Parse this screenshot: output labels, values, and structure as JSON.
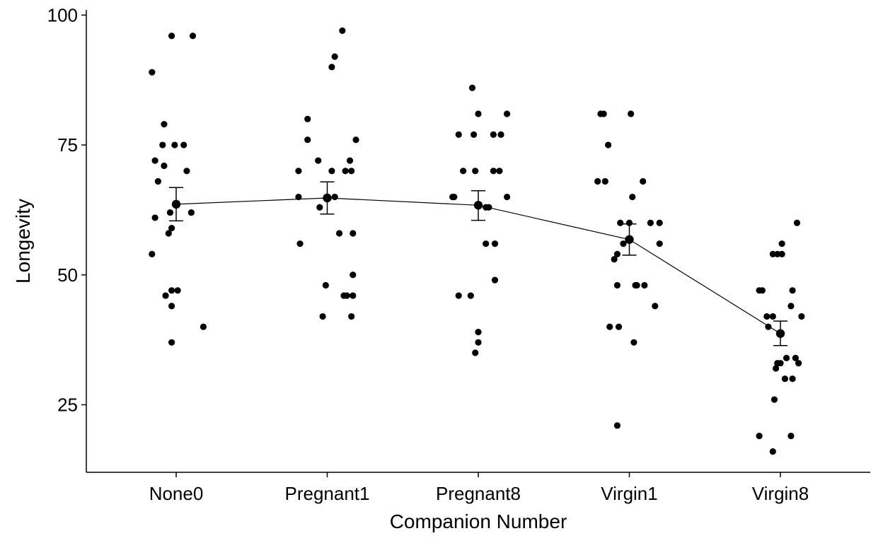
{
  "chart_data": {
    "type": "scatter",
    "xlabel": "Companion Number",
    "ylabel": "Longevity",
    "categories": [
      "None0",
      "Pregnant1",
      "Pregnant8",
      "Virgin1",
      "Virgin8"
    ],
    "ylim": [
      12,
      101
    ],
    "yticks": [
      25,
      50,
      75,
      100
    ],
    "grid": false,
    "points": [
      {
        "group": "None0",
        "jitter": -0.16,
        "value": 89
      },
      {
        "group": "None0",
        "jitter": -0.03,
        "value": 96
      },
      {
        "group": "None0",
        "jitter": 0.11,
        "value": 96
      },
      {
        "group": "None0",
        "jitter": -0.08,
        "value": 79
      },
      {
        "group": "None0",
        "jitter": -0.09,
        "value": 75
      },
      {
        "group": "None0",
        "jitter": -0.01,
        "value": 75
      },
      {
        "group": "None0",
        "jitter": 0.05,
        "value": 75
      },
      {
        "group": "None0",
        "jitter": -0.14,
        "value": 72
      },
      {
        "group": "None0",
        "jitter": -0.08,
        "value": 71
      },
      {
        "group": "None0",
        "jitter": 0.07,
        "value": 70
      },
      {
        "group": "None0",
        "jitter": -0.12,
        "value": 68
      },
      {
        "group": "None0",
        "jitter": -0.04,
        "value": 62
      },
      {
        "group": "None0",
        "jitter": 0.1,
        "value": 62
      },
      {
        "group": "None0",
        "jitter": -0.14,
        "value": 61
      },
      {
        "group": "None0",
        "jitter": -0.03,
        "value": 59
      },
      {
        "group": "None0",
        "jitter": -0.05,
        "value": 58
      },
      {
        "group": "None0",
        "jitter": -0.16,
        "value": 54
      },
      {
        "group": "None0",
        "jitter": -0.03,
        "value": 47
      },
      {
        "group": "None0",
        "jitter": 0.01,
        "value": 47
      },
      {
        "group": "None0",
        "jitter": -0.07,
        "value": 46
      },
      {
        "group": "None0",
        "jitter": -0.03,
        "value": 44
      },
      {
        "group": "None0",
        "jitter": 0.18,
        "value": 40
      },
      {
        "group": "None0",
        "jitter": -0.03,
        "value": 37
      },
      {
        "group": "Pregnant1",
        "jitter": 0.1,
        "value": 97
      },
      {
        "group": "Pregnant1",
        "jitter": 0.05,
        "value": 92
      },
      {
        "group": "Pregnant1",
        "jitter": 0.03,
        "value": 90
      },
      {
        "group": "Pregnant1",
        "jitter": -0.13,
        "value": 80
      },
      {
        "group": "Pregnant1",
        "jitter": 0.19,
        "value": 76
      },
      {
        "group": "Pregnant1",
        "jitter": -0.13,
        "value": 76
      },
      {
        "group": "Pregnant1",
        "jitter": -0.06,
        "value": 72
      },
      {
        "group": "Pregnant1",
        "jitter": 0.15,
        "value": 72
      },
      {
        "group": "Pregnant1",
        "jitter": -0.19,
        "value": 70
      },
      {
        "group": "Pregnant1",
        "jitter": 0.03,
        "value": 70
      },
      {
        "group": "Pregnant1",
        "jitter": 0.12,
        "value": 70
      },
      {
        "group": "Pregnant1",
        "jitter": 0.16,
        "value": 70
      },
      {
        "group": "Pregnant1",
        "jitter": -0.19,
        "value": 65
      },
      {
        "group": "Pregnant1",
        "jitter": 0.05,
        "value": 65
      },
      {
        "group": "Pregnant1",
        "jitter": -0.05,
        "value": 63
      },
      {
        "group": "Pregnant1",
        "jitter": 0.17,
        "value": 58
      },
      {
        "group": "Pregnant1",
        "jitter": 0.08,
        "value": 58
      },
      {
        "group": "Pregnant1",
        "jitter": -0.18,
        "value": 56
      },
      {
        "group": "Pregnant1",
        "jitter": 0.17,
        "value": 50
      },
      {
        "group": "Pregnant1",
        "jitter": -0.01,
        "value": 48
      },
      {
        "group": "Pregnant1",
        "jitter": 0.17,
        "value": 46
      },
      {
        "group": "Pregnant1",
        "jitter": 0.11,
        "value": 46
      },
      {
        "group": "Pregnant1",
        "jitter": 0.13,
        "value": 46
      },
      {
        "group": "Pregnant1",
        "jitter": -0.03,
        "value": 42
      },
      {
        "group": "Pregnant1",
        "jitter": 0.16,
        "value": 42
      },
      {
        "group": "Pregnant8",
        "jitter": -0.04,
        "value": 86
      },
      {
        "group": "Pregnant8",
        "jitter": 0.19,
        "value": 81
      },
      {
        "group": "Pregnant8",
        "jitter": 0.0,
        "value": 81
      },
      {
        "group": "Pregnant8",
        "jitter": -0.13,
        "value": 77
      },
      {
        "group": "Pregnant8",
        "jitter": -0.03,
        "value": 77
      },
      {
        "group": "Pregnant8",
        "jitter": 0.1,
        "value": 77
      },
      {
        "group": "Pregnant8",
        "jitter": 0.15,
        "value": 77
      },
      {
        "group": "Pregnant8",
        "jitter": -0.1,
        "value": 70
      },
      {
        "group": "Pregnant8",
        "jitter": -0.02,
        "value": 70
      },
      {
        "group": "Pregnant8",
        "jitter": 0.1,
        "value": 70
      },
      {
        "group": "Pregnant8",
        "jitter": 0.14,
        "value": 70
      },
      {
        "group": "Pregnant8",
        "jitter": -0.17,
        "value": 65
      },
      {
        "group": "Pregnant8",
        "jitter": -0.16,
        "value": 65
      },
      {
        "group": "Pregnant8",
        "jitter": 0.19,
        "value": 65
      },
      {
        "group": "Pregnant8",
        "jitter": 0.05,
        "value": 63
      },
      {
        "group": "Pregnant8",
        "jitter": 0.07,
        "value": 63
      },
      {
        "group": "Pregnant8",
        "jitter": 0.05,
        "value": 56
      },
      {
        "group": "Pregnant8",
        "jitter": 0.11,
        "value": 56
      },
      {
        "group": "Pregnant8",
        "jitter": 0.11,
        "value": 49
      },
      {
        "group": "Pregnant8",
        "jitter": -0.13,
        "value": 46
      },
      {
        "group": "Pregnant8",
        "jitter": -0.05,
        "value": 46
      },
      {
        "group": "Pregnant8",
        "jitter": 0.0,
        "value": 39
      },
      {
        "group": "Pregnant8",
        "jitter": 0.0,
        "value": 37
      },
      {
        "group": "Pregnant8",
        "jitter": -0.02,
        "value": 35
      },
      {
        "group": "Virgin1",
        "jitter": -0.19,
        "value": 81
      },
      {
        "group": "Virgin1",
        "jitter": -0.17,
        "value": 81
      },
      {
        "group": "Virgin1",
        "jitter": 0.01,
        "value": 81
      },
      {
        "group": "Virgin1",
        "jitter": -0.14,
        "value": 75
      },
      {
        "group": "Virgin1",
        "jitter": -0.21,
        "value": 68
      },
      {
        "group": "Virgin1",
        "jitter": -0.16,
        "value": 68
      },
      {
        "group": "Virgin1",
        "jitter": 0.09,
        "value": 68
      },
      {
        "group": "Virgin1",
        "jitter": 0.02,
        "value": 65
      },
      {
        "group": "Virgin1",
        "jitter": -0.06,
        "value": 60
      },
      {
        "group": "Virgin1",
        "jitter": 0.0,
        "value": 60
      },
      {
        "group": "Virgin1",
        "jitter": 0.14,
        "value": 60
      },
      {
        "group": "Virgin1",
        "jitter": 0.2,
        "value": 60
      },
      {
        "group": "Virgin1",
        "jitter": -0.04,
        "value": 56
      },
      {
        "group": "Virgin1",
        "jitter": 0.2,
        "value": 56
      },
      {
        "group": "Virgin1",
        "jitter": -0.1,
        "value": 53
      },
      {
        "group": "Virgin1",
        "jitter": -0.08,
        "value": 54
      },
      {
        "group": "Virgin1",
        "jitter": -0.08,
        "value": 48
      },
      {
        "group": "Virgin1",
        "jitter": 0.04,
        "value": 48
      },
      {
        "group": "Virgin1",
        "jitter": 0.05,
        "value": 48
      },
      {
        "group": "Virgin1",
        "jitter": 0.1,
        "value": 48
      },
      {
        "group": "Virgin1",
        "jitter": 0.17,
        "value": 44
      },
      {
        "group": "Virgin1",
        "jitter": -0.13,
        "value": 40
      },
      {
        "group": "Virgin1",
        "jitter": -0.07,
        "value": 40
      },
      {
        "group": "Virgin1",
        "jitter": 0.03,
        "value": 37
      },
      {
        "group": "Virgin1",
        "jitter": -0.08,
        "value": 21
      },
      {
        "group": "Virgin8",
        "jitter": 0.11,
        "value": 60
      },
      {
        "group": "Virgin8",
        "jitter": 0.01,
        "value": 56
      },
      {
        "group": "Virgin8",
        "jitter": -0.05,
        "value": 54
      },
      {
        "group": "Virgin8",
        "jitter": -0.02,
        "value": 54
      },
      {
        "group": "Virgin8",
        "jitter": 0.01,
        "value": 54
      },
      {
        "group": "Virgin8",
        "jitter": -0.14,
        "value": 47
      },
      {
        "group": "Virgin8",
        "jitter": -0.12,
        "value": 47
      },
      {
        "group": "Virgin8",
        "jitter": 0.08,
        "value": 47
      },
      {
        "group": "Virgin8",
        "jitter": 0.07,
        "value": 44
      },
      {
        "group": "Virgin8",
        "jitter": 0.14,
        "value": 42
      },
      {
        "group": "Virgin8",
        "jitter": -0.09,
        "value": 42
      },
      {
        "group": "Virgin8",
        "jitter": -0.05,
        "value": 42
      },
      {
        "group": "Virgin8",
        "jitter": -0.08,
        "value": 40
      },
      {
        "group": "Virgin8",
        "jitter": -0.02,
        "value": 33
      },
      {
        "group": "Virgin8",
        "jitter": 0.0,
        "value": 33
      },
      {
        "group": "Virgin8",
        "jitter": -0.03,
        "value": 32
      },
      {
        "group": "Virgin8",
        "jitter": 0.04,
        "value": 34
      },
      {
        "group": "Virgin8",
        "jitter": 0.1,
        "value": 34
      },
      {
        "group": "Virgin8",
        "jitter": 0.12,
        "value": 33
      },
      {
        "group": "Virgin8",
        "jitter": 0.03,
        "value": 30
      },
      {
        "group": "Virgin8",
        "jitter": 0.08,
        "value": 30
      },
      {
        "group": "Virgin8",
        "jitter": -0.04,
        "value": 26
      },
      {
        "group": "Virgin8",
        "jitter": -0.14,
        "value": 19
      },
      {
        "group": "Virgin8",
        "jitter": 0.07,
        "value": 19
      },
      {
        "group": "Virgin8",
        "jitter": -0.05,
        "value": 16
      }
    ],
    "means": [
      {
        "group": "None0",
        "mean": 63.6,
        "lower": 60.4,
        "upper": 66.8
      },
      {
        "group": "Pregnant1",
        "mean": 64.8,
        "lower": 61.7,
        "upper": 67.9
      },
      {
        "group": "Pregnant8",
        "mean": 63.4,
        "lower": 60.5,
        "upper": 66.2
      },
      {
        "group": "Virgin1",
        "mean": 56.8,
        "lower": 53.8,
        "upper": 59.8
      },
      {
        "group": "Virgin8",
        "mean": 38.7,
        "lower": 36.4,
        "upper": 41.1
      }
    ]
  }
}
